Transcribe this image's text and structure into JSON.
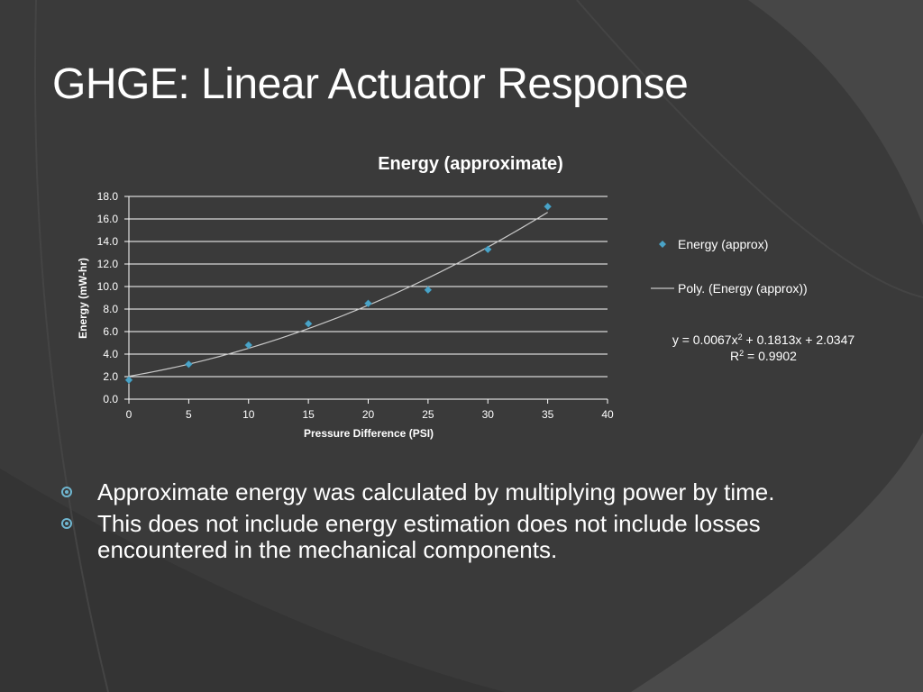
{
  "slide": {
    "title": "GHGE: Linear Actuator Response",
    "bullets": [
      "Approximate energy was calculated by multiplying power by time.",
      "This does not include energy estimation does not include losses encountered in the mechanical components."
    ],
    "colors": {
      "background": "#3d3d3d",
      "accent": "#6fb6d0",
      "marker": "#4aa3c7",
      "trendline": "#c8c8c8",
      "gridline": "#ffffff"
    }
  },
  "chart_data": {
    "type": "scatter",
    "title": "Energy (approximate)",
    "xlabel": "Pressure Difference (PSI)",
    "ylabel": "Energy (mW-hr)",
    "xlim": [
      0,
      40
    ],
    "ylim": [
      0,
      18
    ],
    "xticks": [
      0,
      5,
      10,
      15,
      20,
      25,
      30,
      35,
      40
    ],
    "yticks": [
      "0.0",
      "2.0",
      "4.0",
      "6.0",
      "8.0",
      "10.0",
      "12.0",
      "14.0",
      "16.0",
      "18.0"
    ],
    "grid": true,
    "legend_position": "right",
    "series": [
      {
        "name": "Energy (approx)",
        "x": [
          0,
          5,
          10,
          15,
          20,
          25,
          30,
          35
        ],
        "y": [
          1.7,
          3.1,
          4.8,
          6.7,
          8.5,
          9.7,
          13.3,
          17.1
        ]
      }
    ],
    "trendline": {
      "name": "Poly. (Energy (approx))",
      "type": "polynomial",
      "coefficients": [
        0.0067,
        0.1813,
        2.0347
      ],
      "x_range": [
        0,
        35
      ],
      "equation_prefix": "y = 0.0067x",
      "equation_sup": "2",
      "equation_suffix": " + 0.1813x + 2.0347",
      "r2_prefix": "R",
      "r2_sup": "2",
      "r2_suffix": " = 0.9902"
    }
  }
}
